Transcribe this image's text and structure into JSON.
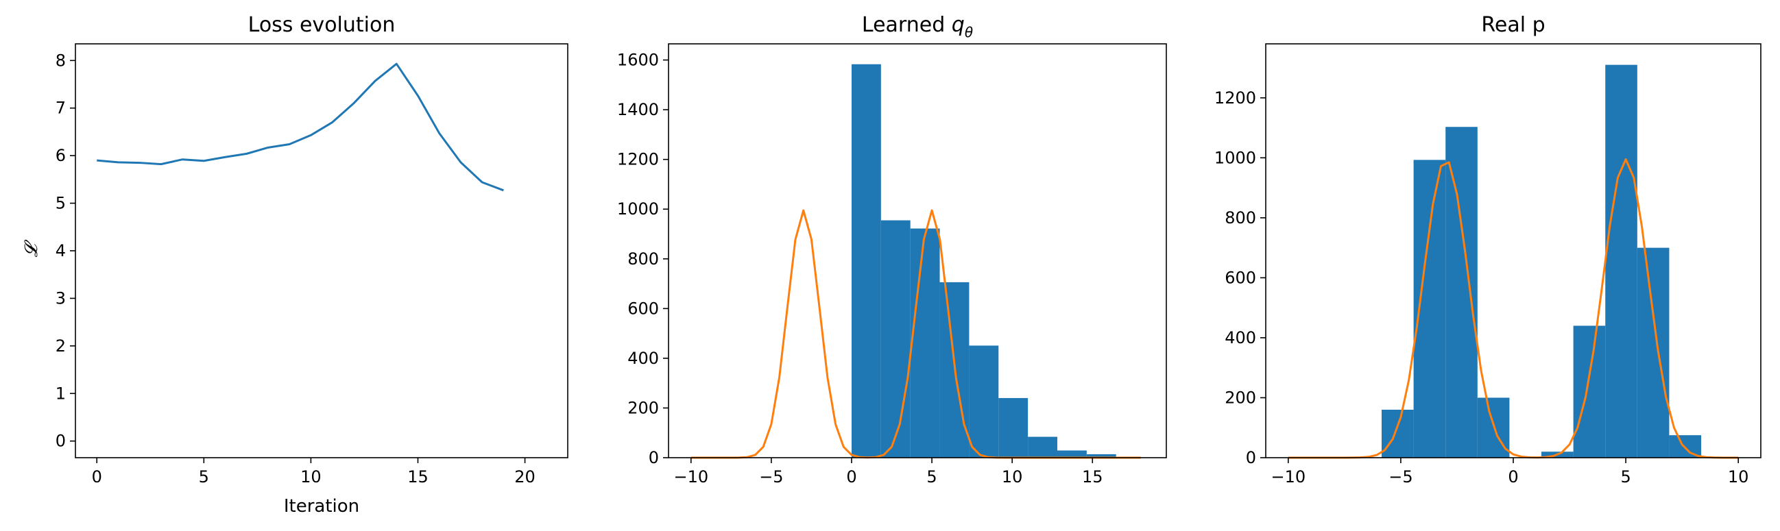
{
  "chart_data": [
    {
      "type": "line",
      "title": "Loss evolution",
      "xlabel": "Iteration",
      "ylabel": "𝓛",
      "xlim": [
        -1,
        22
      ],
      "ylim": [
        -0.35,
        8.35
      ],
      "xticks": [
        0,
        5,
        10,
        15,
        20
      ],
      "yticks": [
        0,
        1,
        2,
        3,
        4,
        5,
        6,
        7,
        8
      ],
      "grid": false,
      "series": [
        {
          "color": "#1f77b4",
          "x": [
            0,
            1,
            2,
            3,
            4,
            5,
            6,
            7,
            8,
            9,
            10,
            11,
            12,
            13,
            14,
            15,
            16,
            17,
            18,
            19
          ],
          "y": [
            5.9,
            5.86,
            5.85,
            5.82,
            5.92,
            5.89,
            5.97,
            6.04,
            6.17,
            6.24,
            6.43,
            6.7,
            7.1,
            7.57,
            7.93,
            7.26,
            6.47,
            5.86,
            5.44,
            5.27
          ]
        }
      ]
    },
    {
      "type": "bar",
      "title_main": "Learned ",
      "title_math": "q",
      "title_sub": "θ",
      "xlabel": "",
      "ylabel": "",
      "xlim": [
        -11.4,
        19.6
      ],
      "ylim": [
        0,
        1665
      ],
      "xticks": [
        -10,
        -5,
        0,
        5,
        10,
        15
      ],
      "yticks": [
        0,
        200,
        400,
        600,
        800,
        1000,
        1200,
        1400,
        1600
      ],
      "grid": false,
      "histogram": {
        "color": "#1f77b4",
        "bin_edges": [
          0.0,
          1.83,
          3.66,
          5.49,
          7.32,
          9.15,
          10.98,
          12.81,
          14.64,
          16.47
        ],
        "counts": [
          1583,
          955,
          922,
          706,
          451,
          240,
          84,
          29,
          14
        ]
      },
      "curve": {
        "color": "#ff7f0e",
        "x_range": [
          -10,
          18
        ],
        "components": [
          {
            "mu": -3,
            "sigma": 1,
            "peak": 995
          },
          {
            "mu": 5,
            "sigma": 1,
            "peak": 995
          }
        ]
      }
    },
    {
      "type": "bar",
      "title": "Real p",
      "xlabel": "",
      "ylabel": "",
      "xlim": [
        -11.0,
        11.0
      ],
      "ylim": [
        0,
        1380
      ],
      "xticks": [
        -10,
        -5,
        0,
        5,
        10
      ],
      "yticks": [
        0,
        200,
        400,
        600,
        800,
        1000,
        1200
      ],
      "grid": false,
      "histogram": {
        "color": "#1f77b4",
        "bin_edges": [
          -5.85,
          -4.43,
          -3.01,
          -1.59,
          -0.17,
          1.25,
          2.67,
          4.09,
          5.51,
          6.93,
          8.35
        ],
        "counts": [
          160,
          993,
          1103,
          200,
          0,
          20,
          440,
          1310,
          700,
          75
        ]
      },
      "curve": {
        "color": "#ff7f0e",
        "x_range": [
          -10,
          10
        ],
        "components": [
          {
            "mu": -3,
            "sigma": 1,
            "peak": 995
          },
          {
            "mu": 5,
            "sigma": 1,
            "peak": 995
          }
        ]
      }
    }
  ]
}
